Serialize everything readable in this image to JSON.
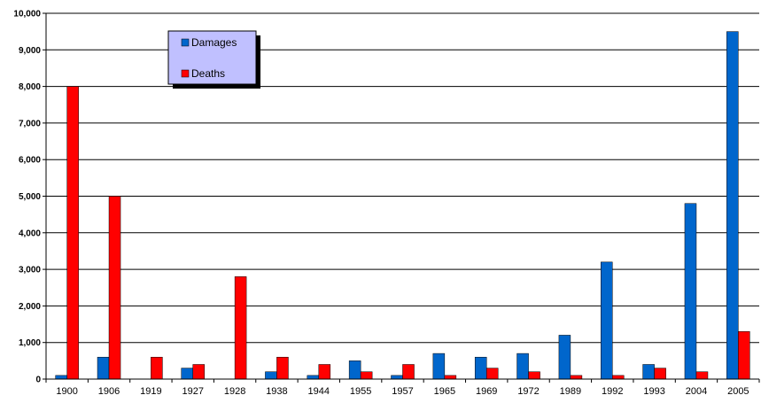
{
  "chart_data": {
    "type": "bar",
    "categories": [
      "1900",
      "1906",
      "1919",
      "1927",
      "1928",
      "1938",
      "1944",
      "1955",
      "1957",
      "1965",
      "1969",
      "1972",
      "1989",
      "1992",
      "1993",
      "2004",
      "2005"
    ],
    "series": [
      {
        "name": "Damages",
        "color": "#0066cc",
        "values": [
          100,
          600,
          0,
          300,
          0,
          200,
          100,
          500,
          100,
          700,
          600,
          700,
          1200,
          3200,
          400,
          4800,
          9500
        ]
      },
      {
        "name": "Deaths",
        "color": "#ff0000",
        "values": [
          8000,
          5000,
          600,
          400,
          2800,
          600,
          400,
          200,
          400,
          100,
          300,
          200,
          100,
          100,
          300,
          200,
          1300
        ]
      }
    ],
    "ylim": [
      0,
      10000
    ],
    "yticks": [
      "0",
      "1,000",
      "2,000",
      "3,000",
      "4,000",
      "5,000",
      "6,000",
      "7,000",
      "8,000",
      "9,000",
      "10,000"
    ],
    "grid": true,
    "legend_position": "top-left",
    "legend_background": "#c0c0ff"
  }
}
